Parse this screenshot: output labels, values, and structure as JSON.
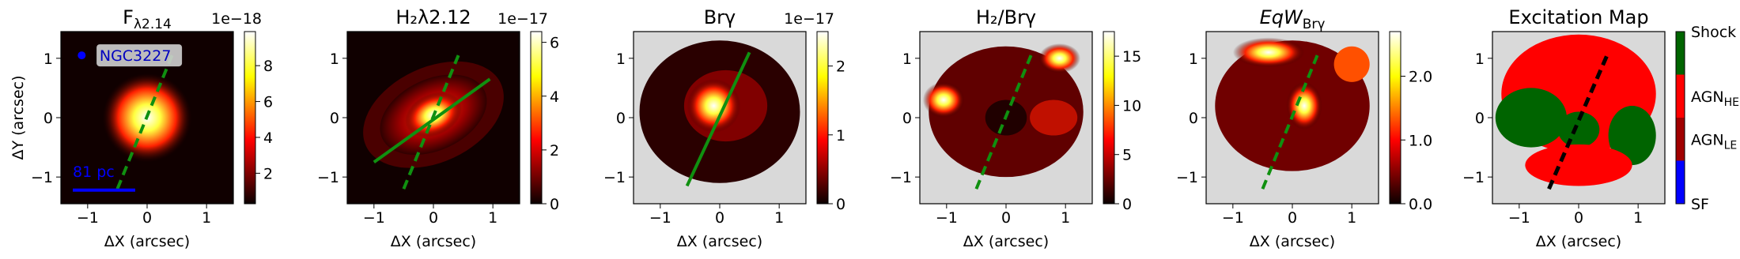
{
  "chart_data": [
    {
      "type": "heatmap",
      "title": "F",
      "title_sub": "λ2.14",
      "xlabel": "ΔX (arcsec)",
      "ylabel": "ΔY (arcsec)",
      "xlim": [
        -1.45,
        1.45
      ],
      "ylim": [
        -1.45,
        1.45
      ],
      "xticks": [
        {
          "value": -1,
          "label": "−1"
        },
        0,
        1
      ],
      "yticks": [
        {
          "value": -1,
          "label": "−1"
        },
        0,
        1
      ],
      "colormap": "hot",
      "clim": [
        0.3,
        9.9
      ],
      "cticks": [
        2,
        4,
        6,
        8
      ],
      "offset_text": "1e−18",
      "object_label": "NGC3227",
      "scalebar_label": "81 pc"
    },
    {
      "type": "heatmap",
      "title": "H₂λ2.12",
      "xlabel": "ΔX (arcsec)",
      "xlim": [
        -1.45,
        1.45
      ],
      "ylim": [
        -1.45,
        1.45
      ],
      "xticks": [
        {
          "value": -1,
          "label": "−1"
        },
        0,
        1
      ],
      "yticks": [
        {
          "value": -1,
          "label": "−1"
        },
        0,
        1
      ],
      "colormap": "hot",
      "clim": [
        0,
        6.4
      ],
      "cticks": [
        0,
        2,
        4,
        6
      ],
      "offset_text": "1e−17"
    },
    {
      "type": "heatmap",
      "title": "Brγ",
      "xlabel": "ΔX (arcsec)",
      "xlim": [
        -1.45,
        1.45
      ],
      "ylim": [
        -1.45,
        1.45
      ],
      "xticks": [
        {
          "value": -1,
          "label": "−1"
        },
        0,
        1
      ],
      "yticks": [
        {
          "value": -1,
          "label": "−1"
        },
        0,
        1
      ],
      "colormap": "hot",
      "clim": [
        0,
        2.5
      ],
      "cticks": [
        0,
        1,
        2
      ],
      "offset_text": "1e−17"
    },
    {
      "type": "heatmap",
      "title": "H₂/Brγ",
      "xlabel": "ΔX (arcsec)",
      "xlim": [
        -1.45,
        1.45
      ],
      "ylim": [
        -1.45,
        1.45
      ],
      "xticks": [
        {
          "value": -1,
          "label": "−1"
        },
        0,
        1
      ],
      "yticks": [
        {
          "value": -1,
          "label": "−1"
        },
        0,
        1
      ],
      "colormap": "hot",
      "clim": [
        0,
        17.5
      ],
      "cticks": [
        0,
        5,
        10,
        15
      ]
    },
    {
      "type": "heatmap",
      "title": "EqW",
      "title_sub": "Brγ",
      "title_italic": true,
      "xlabel": "ΔX (arcsec)",
      "xlim": [
        -1.45,
        1.45
      ],
      "ylim": [
        -1.45,
        1.45
      ],
      "xticks": [
        {
          "value": -1,
          "label": "−1"
        },
        0,
        1
      ],
      "yticks": [
        {
          "value": -1,
          "label": "−1"
        },
        0,
        1
      ],
      "colormap": "hot",
      "clim": [
        0,
        2.7
      ],
      "cticks": [
        {
          "value": 0,
          "label": "0.0"
        },
        {
          "value": 1,
          "label": "1.0"
        },
        {
          "value": 2,
          "label": "2.0"
        }
      ]
    },
    {
      "type": "category-map",
      "title": "Excitation Map",
      "xlabel": "ΔX (arcsec)",
      "xlim": [
        -1.45,
        1.45
      ],
      "ylim": [
        -1.45,
        1.45
      ],
      "xticks": [
        {
          "value": -1,
          "label": "−1"
        },
        0,
        1
      ],
      "yticks": [
        {
          "value": -1,
          "label": "−1"
        },
        0,
        1
      ],
      "classes": [
        {
          "name": "Shock",
          "color": "#006400"
        },
        {
          "name": "AGN",
          "sub": "HE",
          "color": "#ff0000"
        },
        {
          "name": "AGN",
          "sub": "LE",
          "color": "#a00000"
        },
        {
          "name": "SF",
          "color": "#0000ff"
        }
      ]
    }
  ]
}
